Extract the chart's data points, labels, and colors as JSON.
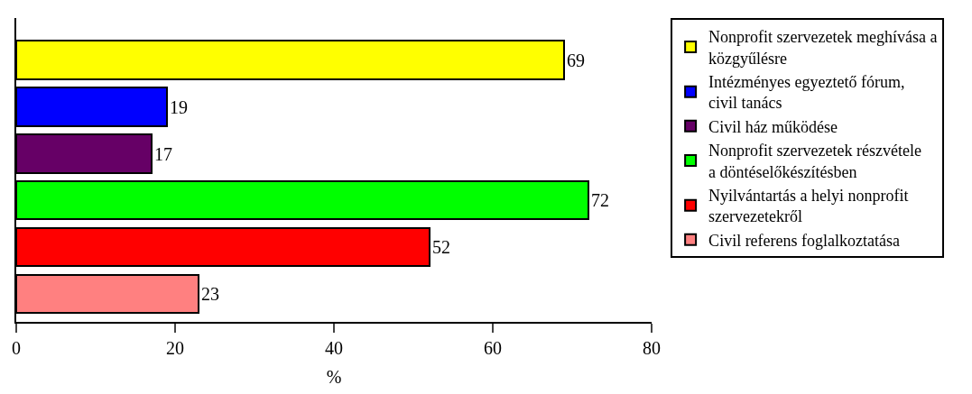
{
  "chart_data": {
    "type": "bar",
    "orientation": "horizontal",
    "xlabel": "%",
    "categories": [
      null,
      null,
      null,
      null,
      null,
      null
    ],
    "series": [
      {
        "name": "Nonprofit szervezetek meghívása a közgyűlésre",
        "color": "#ffff00",
        "values": [
          69,
          null,
          null,
          null,
          null,
          null
        ]
      },
      {
        "name": "Intézményes egyeztető fórum, civil tanács",
        "color": "#0000ff",
        "values": [
          null,
          19,
          null,
          null,
          null,
          null
        ]
      },
      {
        "name": "Civil ház működése",
        "color": "#660066",
        "values": [
          null,
          null,
          17,
          null,
          null,
          null
        ]
      },
      {
        "name": "Nonprofit szervezetek részvétele a döntéselőkészítésben",
        "color": "#00ff00",
        "values": [
          null,
          null,
          null,
          72,
          null,
          null
        ]
      },
      {
        "name": "Nyilvántartás a helyi nonprofit szervezetekről",
        "color": "#ff0000",
        "values": [
          null,
          null,
          null,
          null,
          52,
          null
        ]
      },
      {
        "name": "Civil referens foglalkoztatása",
        "color": "#ff8080",
        "values": [
          null,
          null,
          null,
          null,
          null,
          23
        ]
      }
    ],
    "xlim": [
      0,
      80
    ],
    "xticks": [
      0,
      20,
      40,
      60,
      80
    ],
    "data_labels": true,
    "legend": "right",
    "tick_labels": "x"
  }
}
